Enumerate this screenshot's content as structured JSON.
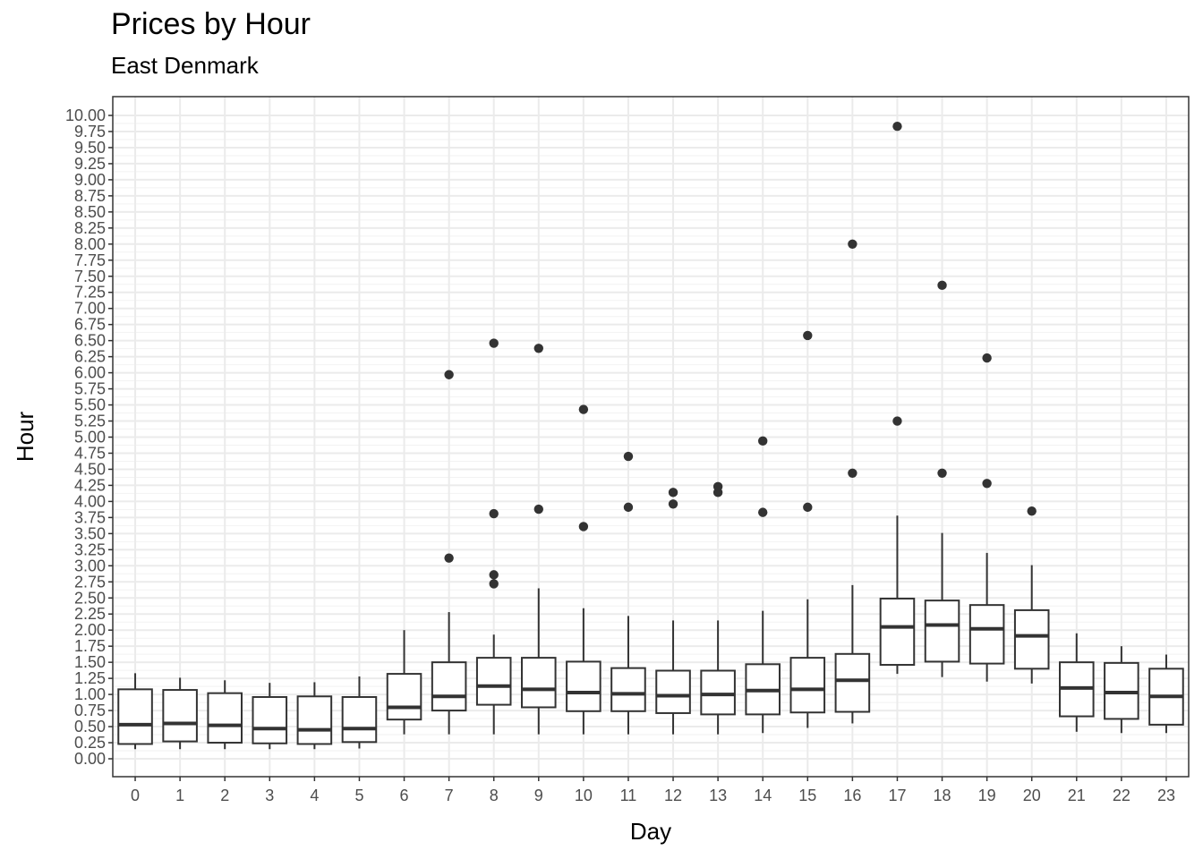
{
  "chart_data": {
    "type": "boxplot",
    "title": "Prices by Hour",
    "subtitle": "East Denmark",
    "xlabel": "Day",
    "ylabel": "Hour",
    "ylim": [
      -0.3,
      10.3
    ],
    "y_ticks": [
      "0.00",
      "0.25",
      "0.50",
      "0.75",
      "1.00",
      "1.25",
      "1.50",
      "1.75",
      "2.00",
      "2.25",
      "2.50",
      "2.75",
      "3.00",
      "3.25",
      "3.50",
      "3.75",
      "4.00",
      "4.25",
      "4.50",
      "4.75",
      "5.00",
      "5.25",
      "5.50",
      "5.75",
      "6.00",
      "6.25",
      "6.50",
      "6.75",
      "7.00",
      "7.25",
      "7.50",
      "7.75",
      "8.00",
      "8.25",
      "8.50",
      "8.75",
      "9.00",
      "9.25",
      "9.50",
      "9.75",
      "10.00"
    ],
    "y_tick_values": [
      0,
      0.25,
      0.5,
      0.75,
      1,
      1.25,
      1.5,
      1.75,
      2,
      2.25,
      2.5,
      2.75,
      3,
      3.25,
      3.5,
      3.75,
      4,
      4.25,
      4.5,
      4.75,
      5,
      5.25,
      5.5,
      5.75,
      6,
      6.25,
      6.5,
      6.75,
      7,
      7.25,
      7.5,
      7.75,
      8,
      8.25,
      8.5,
      8.75,
      9,
      9.25,
      9.5,
      9.75,
      10
    ],
    "grid": true,
    "categories": [
      "0",
      "1",
      "2",
      "3",
      "4",
      "5",
      "6",
      "7",
      "8",
      "9",
      "10",
      "11",
      "12",
      "13",
      "14",
      "15",
      "16",
      "17",
      "18",
      "19",
      "20",
      "21",
      "22",
      "23"
    ],
    "boxes": [
      {
        "min": 0.15,
        "q1": 0.23,
        "median": 0.53,
        "q3": 1.08,
        "max": 1.33,
        "outliers": []
      },
      {
        "min": 0.15,
        "q1": 0.27,
        "median": 0.55,
        "q3": 1.07,
        "max": 1.26,
        "outliers": []
      },
      {
        "min": 0.15,
        "q1": 0.25,
        "median": 0.52,
        "q3": 1.02,
        "max": 1.22,
        "outliers": []
      },
      {
        "min": 0.15,
        "q1": 0.24,
        "median": 0.47,
        "q3": 0.96,
        "max": 1.18,
        "outliers": []
      },
      {
        "min": 0.15,
        "q1": 0.23,
        "median": 0.45,
        "q3": 0.97,
        "max": 1.19,
        "outliers": []
      },
      {
        "min": 0.16,
        "q1": 0.26,
        "median": 0.47,
        "q3": 0.96,
        "max": 1.28,
        "outliers": []
      },
      {
        "min": 0.38,
        "q1": 0.61,
        "median": 0.8,
        "q3": 1.32,
        "max": 2.0,
        "outliers": []
      },
      {
        "min": 0.38,
        "q1": 0.75,
        "median": 0.97,
        "q3": 1.5,
        "max": 2.28,
        "outliers": [
          3.12,
          5.97
        ]
      },
      {
        "min": 0.38,
        "q1": 0.84,
        "median": 1.13,
        "q3": 1.57,
        "max": 1.93,
        "outliers": [
          2.72,
          2.86,
          3.81,
          6.46
        ]
      },
      {
        "min": 0.38,
        "q1": 0.8,
        "median": 1.08,
        "q3": 1.57,
        "max": 2.65,
        "outliers": [
          3.88,
          6.38
        ]
      },
      {
        "min": 0.38,
        "q1": 0.74,
        "median": 1.03,
        "q3": 1.51,
        "max": 2.34,
        "outliers": [
          3.61,
          5.43
        ]
      },
      {
        "min": 0.38,
        "q1": 0.74,
        "median": 1.01,
        "q3": 1.41,
        "max": 2.22,
        "outliers": [
          3.91,
          4.7
        ]
      },
      {
        "min": 0.38,
        "q1": 0.71,
        "median": 0.98,
        "q3": 1.37,
        "max": 2.15,
        "outliers": [
          3.96,
          4.14
        ]
      },
      {
        "min": 0.38,
        "q1": 0.69,
        "median": 1.0,
        "q3": 1.37,
        "max": 2.15,
        "outliers": [
          4.14,
          4.23
        ]
      },
      {
        "min": 0.4,
        "q1": 0.69,
        "median": 1.06,
        "q3": 1.47,
        "max": 2.3,
        "outliers": [
          3.83,
          4.94
        ]
      },
      {
        "min": 0.48,
        "q1": 0.72,
        "median": 1.08,
        "q3": 1.57,
        "max": 2.48,
        "outliers": [
          3.91,
          6.58
        ]
      },
      {
        "min": 0.55,
        "q1": 0.73,
        "median": 1.22,
        "q3": 1.63,
        "max": 2.7,
        "outliers": [
          4.44,
          8.0
        ]
      },
      {
        "min": 1.32,
        "q1": 1.46,
        "median": 2.05,
        "q3": 2.49,
        "max": 3.78,
        "outliers": [
          5.25,
          9.83
        ]
      },
      {
        "min": 1.27,
        "q1": 1.51,
        "median": 2.08,
        "q3": 2.46,
        "max": 3.51,
        "outliers": [
          4.44,
          7.36
        ]
      },
      {
        "min": 1.2,
        "q1": 1.48,
        "median": 2.02,
        "q3": 2.39,
        "max": 3.2,
        "outliers": [
          4.28,
          6.23
        ]
      },
      {
        "min": 1.17,
        "q1": 1.4,
        "median": 1.91,
        "q3": 2.31,
        "max": 3.01,
        "outliers": [
          3.85
        ]
      },
      {
        "min": 0.42,
        "q1": 0.66,
        "median": 1.1,
        "q3": 1.5,
        "max": 1.95,
        "outliers": []
      },
      {
        "min": 0.4,
        "q1": 0.62,
        "median": 1.03,
        "q3": 1.49,
        "max": 1.75,
        "outliers": []
      },
      {
        "min": 0.4,
        "q1": 0.53,
        "median": 0.97,
        "q3": 1.4,
        "max": 1.62,
        "outliers": []
      }
    ]
  }
}
